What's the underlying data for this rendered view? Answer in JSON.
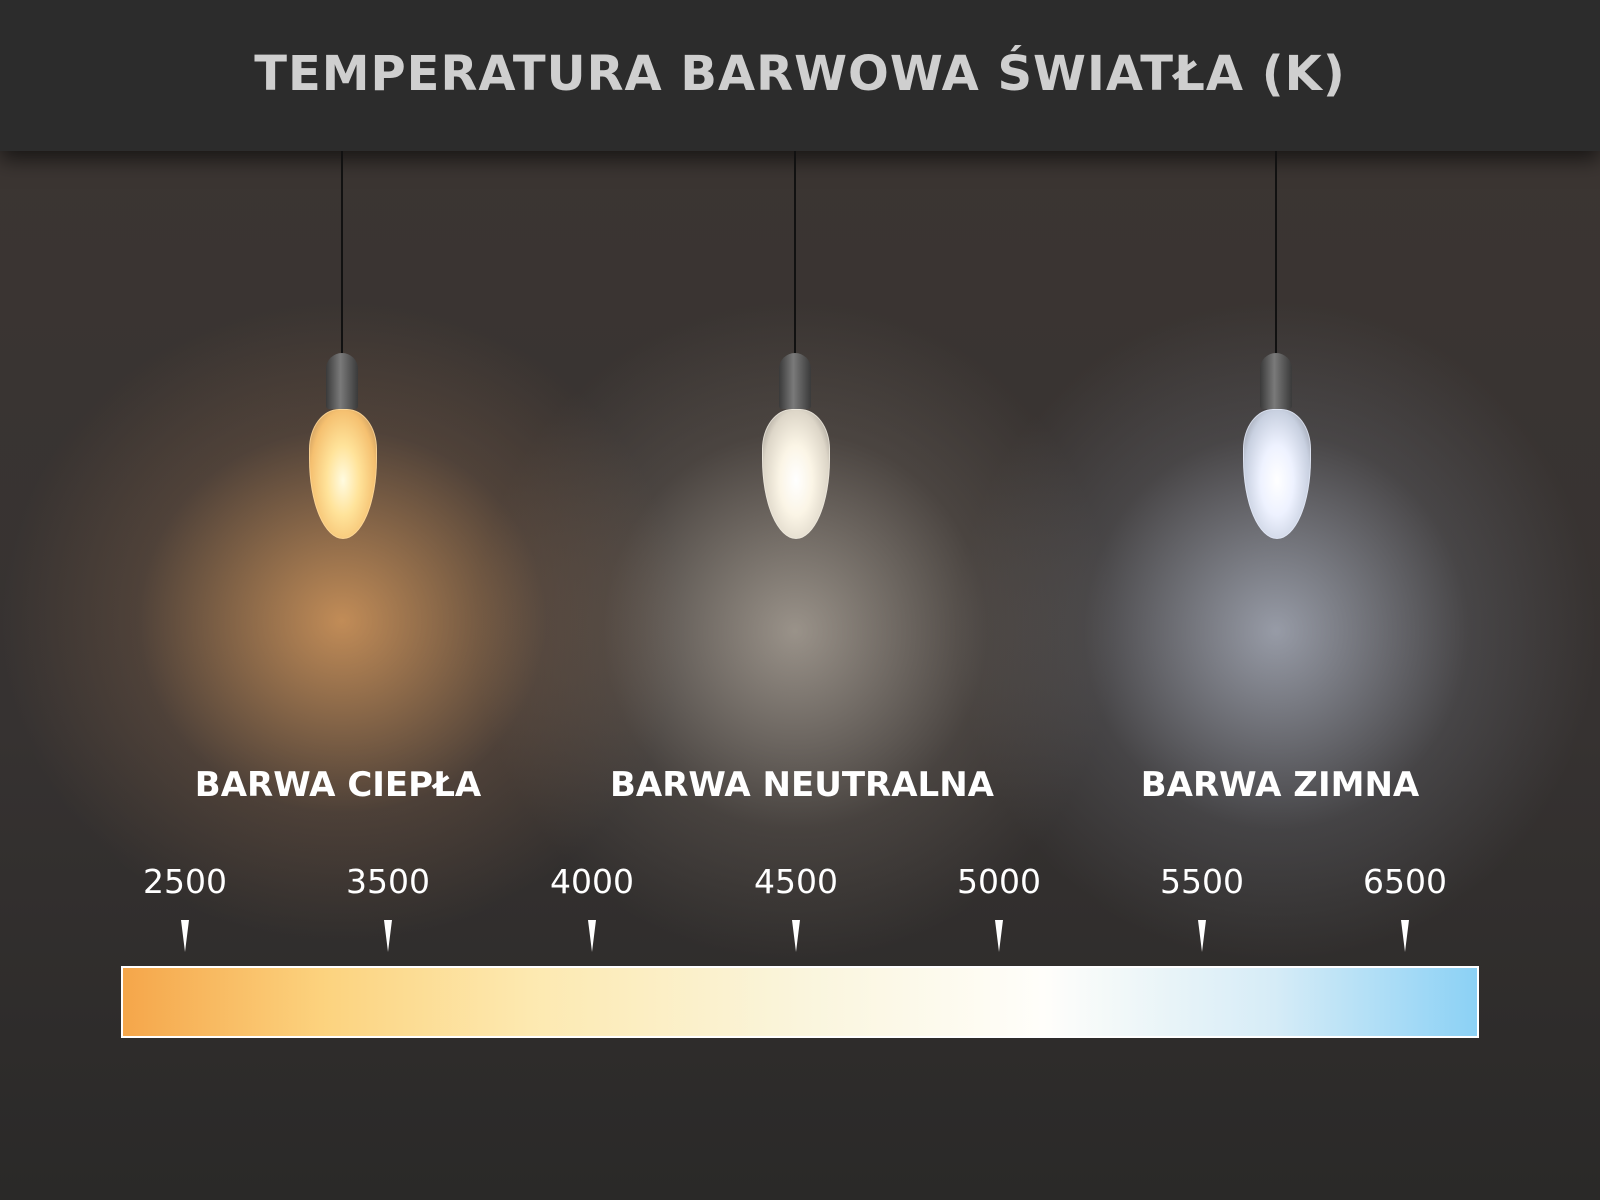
{
  "title": "TEMPERATURA BARWOWA ŚWIATŁA (K)",
  "categories": [
    {
      "label": "BARWA CIEPŁA",
      "glow": "#f7b56a"
    },
    {
      "label": "BARWA NEUTRALNA",
      "glow": "#f4efe2"
    },
    {
      "label": "BARWA ZIMNA",
      "glow": "#e3ebfb"
    }
  ],
  "scale": {
    "ticks": [
      "2500",
      "3500",
      "4000",
      "4500",
      "5000",
      "5500",
      "6500"
    ],
    "gradient_colors": [
      "#f5a64a",
      "#fcd37f",
      "#faf5dc",
      "#ffffff",
      "#8bd1f5"
    ]
  }
}
